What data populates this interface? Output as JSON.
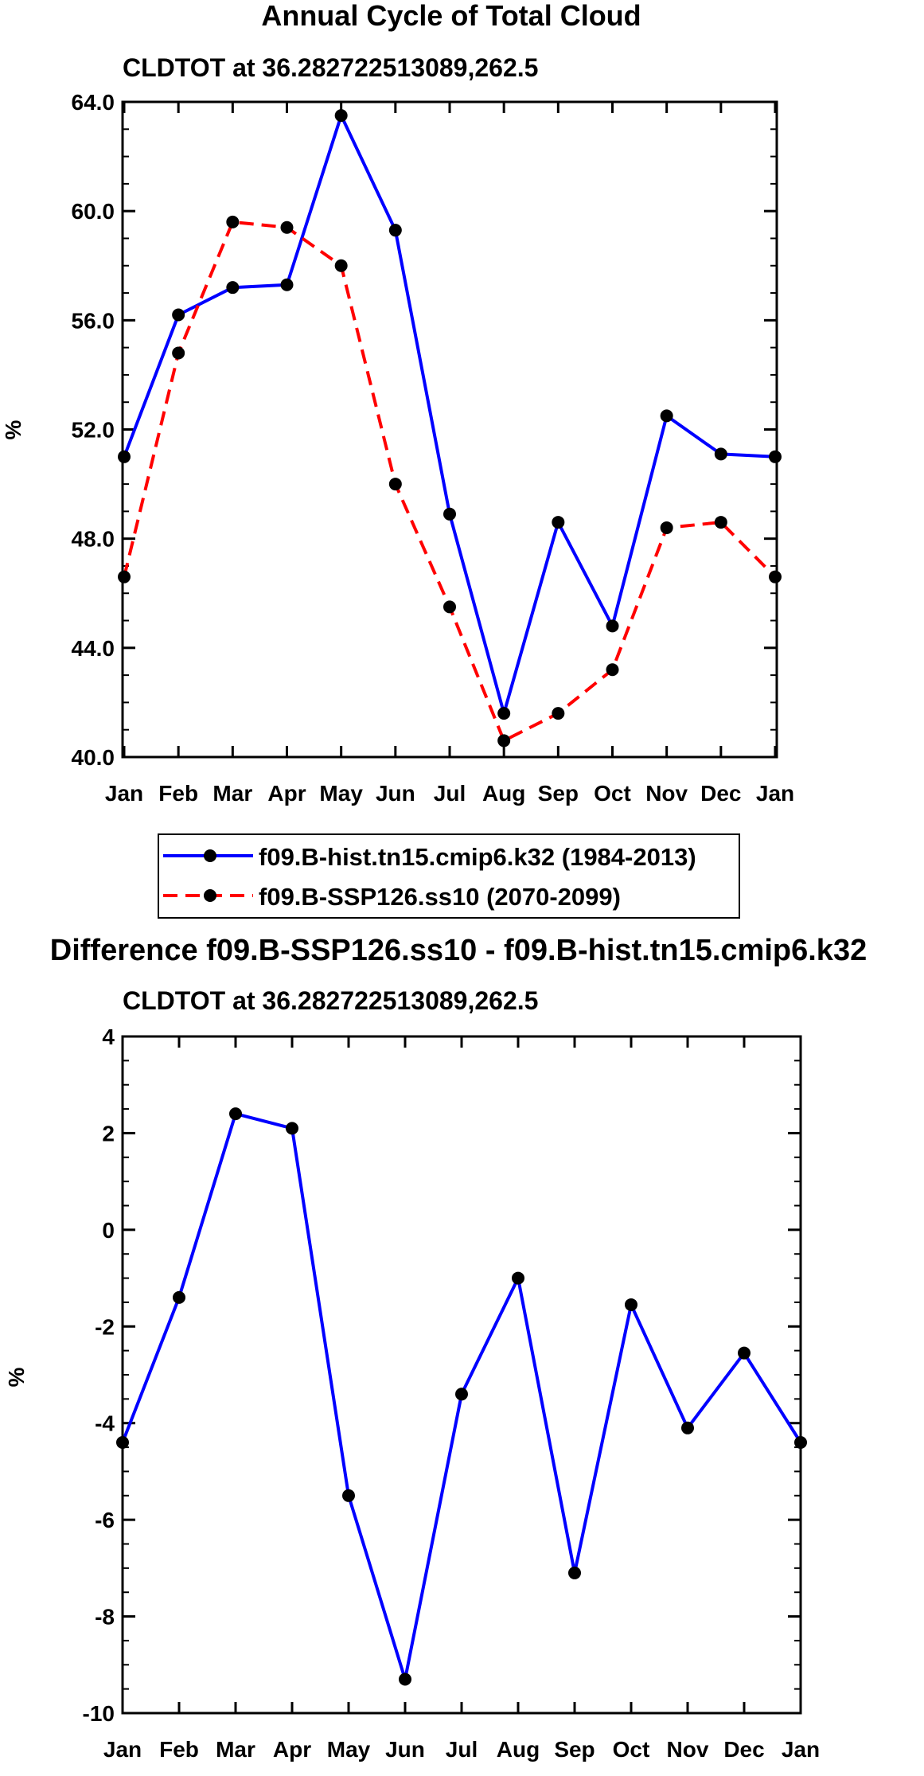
{
  "chart_data": [
    {
      "type": "line",
      "title": "Annual Cycle of Total Cloud",
      "subtitle": "CLDTOT at 36.282722513089,262.5",
      "xlabel": "",
      "ylabel": "%",
      "categories": [
        "Jan",
        "Feb",
        "Mar",
        "Apr",
        "May",
        "Jun",
        "Jul",
        "Aug",
        "Sep",
        "Oct",
        "Nov",
        "Dec",
        "Jan"
      ],
      "ylim": [
        40.0,
        64.0
      ],
      "yticks": [
        "40.0",
        "44.0",
        "48.0",
        "52.0",
        "56.0",
        "60.0",
        "64.0"
      ],
      "series": [
        {
          "name": "f09.B-hist.tn15.cmip6.k32 (1984-2013)",
          "color": "#0000ff",
          "dash": "solid",
          "values": [
            51.0,
            56.2,
            57.2,
            57.3,
            63.5,
            59.3,
            48.9,
            41.6,
            48.6,
            44.8,
            52.5,
            51.1,
            51.0
          ]
        },
        {
          "name": "f09.B-SSP126.ss10 (2070-2099)",
          "color": "#ff0000",
          "dash": "dashed",
          "values": [
            46.6,
            54.8,
            59.6,
            59.4,
            58.0,
            50.0,
            45.5,
            40.6,
            41.6,
            43.2,
            48.4,
            48.6,
            46.6
          ]
        }
      ],
      "legend": "below"
    },
    {
      "type": "line",
      "title": "Difference f09.B-SSP126.ss10 - f09.B-hist.tn15.cmip6.k32",
      "subtitle": "CLDTOT at 36.282722513089,262.5",
      "xlabel": "",
      "ylabel": "%",
      "categories": [
        "Jan",
        "Feb",
        "Mar",
        "Apr",
        "May",
        "Jun",
        "Jul",
        "Aug",
        "Sep",
        "Oct",
        "Nov",
        "Dec",
        "Jan"
      ],
      "ylim": [
        -10,
        4
      ],
      "yticks": [
        "-10",
        "-8",
        "-6",
        "-4",
        "-2",
        "0",
        "2",
        "4"
      ],
      "series": [
        {
          "name": "difference",
          "color": "#0000ff",
          "dash": "solid",
          "values": [
            -4.4,
            -1.4,
            2.4,
            2.1,
            -5.5,
            -9.3,
            -3.4,
            -1.0,
            -7.1,
            -1.55,
            -4.1,
            -2.55,
            -4.4
          ]
        }
      ]
    }
  ]
}
